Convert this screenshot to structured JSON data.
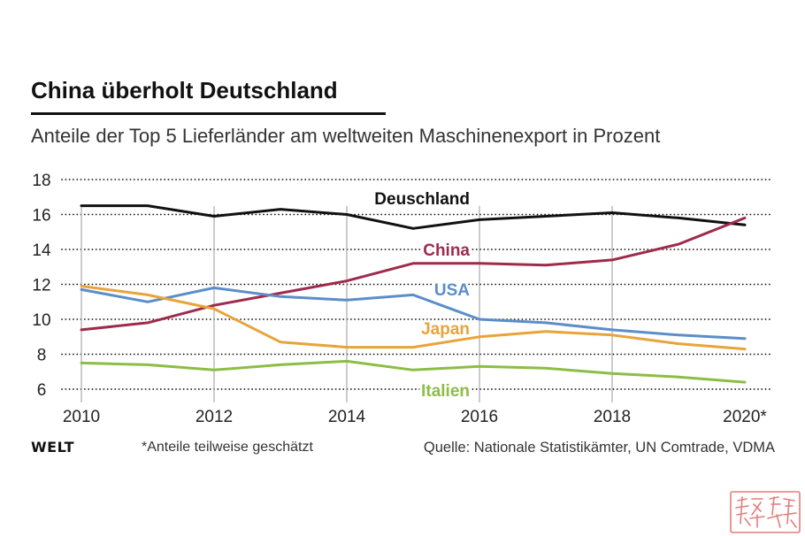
{
  "footer": {
    "logo": "WELT",
    "note": "*Anteile teilweise geschätzt",
    "source": "Quelle: Nationale Statistikämter, UN Comtrade, VDMA"
  },
  "chart_data": {
    "type": "line",
    "title": "China überholt Deutschland",
    "subtitle": "Anteile der Top 5 Lieferländer am weltweiten Maschinenexport in Prozent",
    "x": [
      2010,
      2011,
      2012,
      2013,
      2014,
      2015,
      2016,
      2017,
      2018,
      2019,
      2020
    ],
    "x_ticks": [
      2010,
      2012,
      2014,
      2016,
      2018,
      2020
    ],
    "x_tick_labels": [
      "2010",
      "2012",
      "2014",
      "2016",
      "2018",
      "2020*"
    ],
    "y_ticks": [
      6,
      8,
      10,
      12,
      14,
      16,
      18
    ],
    "xlim": [
      2010,
      2020
    ],
    "ylim": [
      6,
      18
    ],
    "grid": true,
    "series": [
      {
        "name": "Deuschland",
        "color": "#111111",
        "values": [
          16.5,
          16.5,
          15.9,
          16.3,
          16.0,
          15.2,
          15.7,
          15.9,
          16.1,
          15.8,
          15.4
        ]
      },
      {
        "name": "China",
        "color": "#9e2b4b",
        "values": [
          9.4,
          9.8,
          10.8,
          11.5,
          12.2,
          13.2,
          13.2,
          13.1,
          13.4,
          14.3,
          15.8
        ]
      },
      {
        "name": "USA",
        "color": "#5b8ec8",
        "values": [
          11.7,
          11.0,
          11.8,
          11.3,
          11.1,
          11.4,
          10.0,
          9.8,
          9.4,
          9.1,
          8.9
        ]
      },
      {
        "name": "Japan",
        "color": "#e8a43a",
        "values": [
          11.9,
          11.4,
          10.6,
          8.7,
          8.4,
          8.4,
          9.0,
          9.3,
          9.1,
          8.6,
          8.3
        ]
      },
      {
        "name": "Italien",
        "color": "#8cbd45",
        "values": [
          7.5,
          7.4,
          7.1,
          7.4,
          7.6,
          7.1,
          7.3,
          7.2,
          6.9,
          6.7,
          6.4
        ]
      }
    ]
  }
}
